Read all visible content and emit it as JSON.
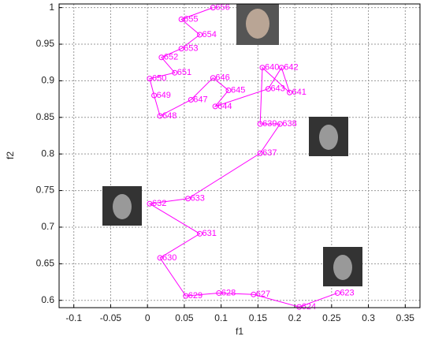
{
  "chart_data": {
    "type": "line",
    "x_label": "f1",
    "y_label": "f2",
    "color": "#ff00ff",
    "grid": true,
    "labels": [
      "623",
      "624",
      "627",
      "628",
      "629",
      "630",
      "631",
      "632",
      "633",
      "637",
      "638",
      "639",
      "640",
      "641",
      "642",
      "643",
      "644",
      "645",
      "646",
      "647",
      "648",
      "649",
      "650",
      "651",
      "652",
      "653",
      "654",
      "655",
      "656"
    ],
    "x": [
      0.258,
      0.206,
      0.144,
      0.097,
      0.052,
      0.017,
      0.071,
      0.003,
      0.055,
      0.153,
      0.18,
      0.153,
      0.156,
      0.193,
      0.182,
      0.164,
      0.092,
      0.11,
      0.089,
      0.059,
      0.017,
      0.009,
      0.003,
      0.037,
      0.019,
      0.046,
      0.071,
      0.046,
      0.089
    ],
    "values": [
      0.61,
      0.591,
      0.608,
      0.61,
      0.606,
      0.658,
      0.691,
      0.732,
      0.739,
      0.801,
      0.841,
      0.841,
      0.918,
      0.884,
      0.918,
      0.889,
      0.865,
      0.887,
      0.904,
      0.874,
      0.852,
      0.88,
      0.903,
      0.911,
      0.932,
      0.944,
      0.963,
      0.984,
      1.0
    ],
    "xlim": [
      -0.12,
      0.37
    ],
    "ylim": [
      0.59,
      1.005
    ],
    "xticks": [
      -0.1,
      -0.05,
      0,
      0.05,
      0.1,
      0.15,
      0.2,
      0.25,
      0.3,
      0.35
    ],
    "yticks": [
      0.6,
      0.65,
      0.7,
      0.75,
      0.8,
      0.85,
      0.9,
      0.95,
      1
    ]
  }
}
